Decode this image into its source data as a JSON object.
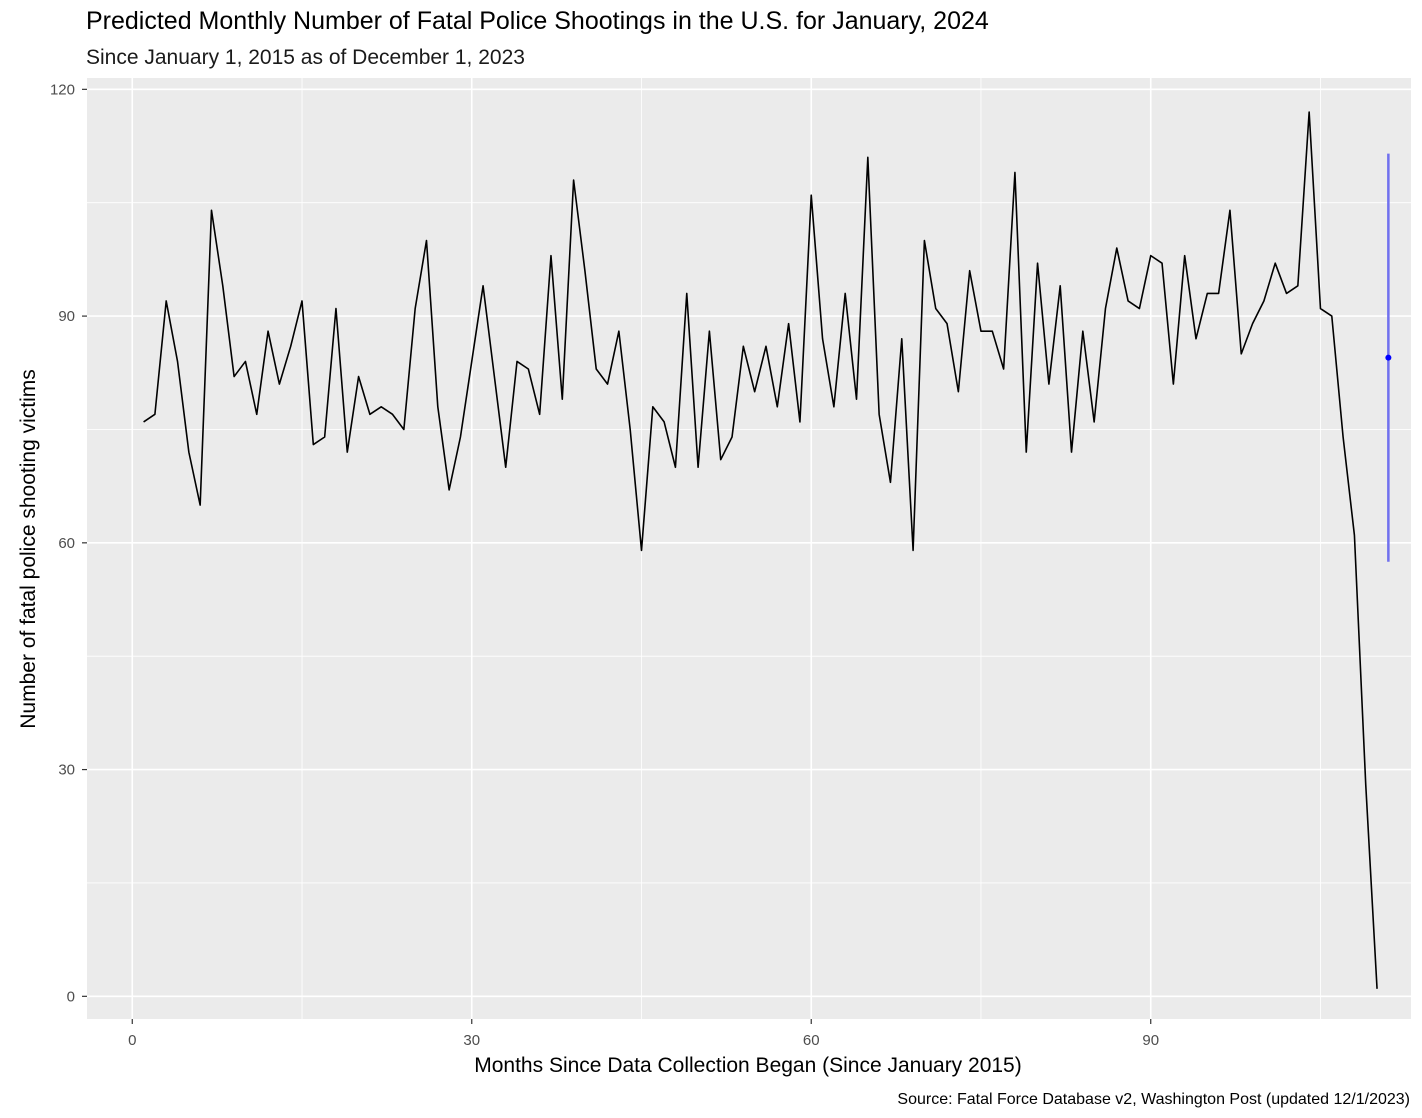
{
  "chart_data": {
    "type": "line",
    "title": "Predicted Monthly Number of Fatal Police Shootings in the U.S. for January, 2024",
    "subtitle": "Since January 1, 2015 as of December 1, 2023",
    "xlabel": "Months Since Data Collection Began (Since January 2015)",
    "ylabel": "Number of fatal police shooting victims",
    "caption": "Source: Fatal Force Database v2, Washington Post (updated 12/1/2023)",
    "xlim": [
      -4,
      113
    ],
    "ylim": [
      -3,
      121.5
    ],
    "x_ticks": [
      0,
      30,
      60,
      90
    ],
    "y_ticks": [
      0,
      30,
      60,
      90,
      120
    ],
    "grid": true,
    "colors": {
      "panel": "#ebebeb",
      "grid": "#ffffff",
      "series": "#000000",
      "prediction": "#0000ff",
      "interval": "#7070ee"
    },
    "series": [
      {
        "values": [
          76,
          77,
          92,
          84,
          72,
          65,
          104,
          94,
          82,
          84,
          77,
          88,
          81,
          86,
          92,
          73,
          74,
          91,
          72,
          82,
          77,
          78,
          77,
          75,
          91,
          100,
          78,
          67,
          74,
          84,
          94,
          82,
          70,
          84,
          83,
          77,
          98,
          79,
          108,
          96,
          83,
          81,
          88,
          75,
          59,
          78,
          76,
          70,
          93,
          70,
          88,
          71,
          74,
          86,
          80,
          86,
          78,
          89,
          76,
          106,
          87,
          78,
          93,
          79,
          111,
          77,
          68,
          87,
          59,
          100,
          91,
          89,
          80,
          96,
          88,
          88,
          83,
          109,
          72,
          97,
          81,
          94,
          72,
          88,
          76,
          91,
          99,
          92,
          91,
          98,
          97,
          81,
          98,
          87,
          93,
          93,
          104,
          85,
          89,
          92,
          97,
          93,
          94,
          117,
          91,
          90,
          74,
          61,
          28,
          1
        ]
      }
    ],
    "x_start": 1,
    "prediction": {
      "x": 111,
      "y": 84.5,
      "lower": 57.5,
      "upper": 111.5
    }
  }
}
